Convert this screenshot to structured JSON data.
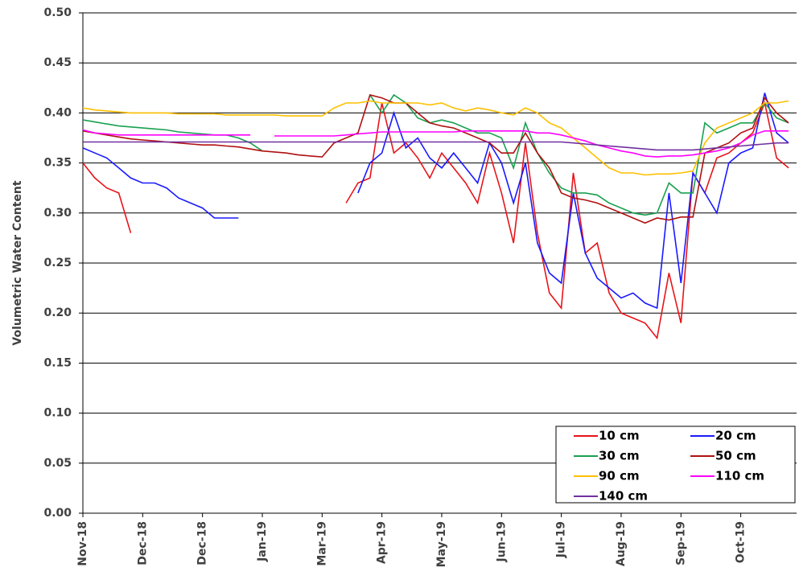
{
  "chart_data": {
    "type": "line",
    "y_label": "Volumetric Water Content",
    "x": [
      0,
      6,
      12,
      18,
      24,
      30,
      36,
      42,
      48,
      54,
      60,
      66,
      72,
      78,
      84,
      90,
      96,
      102,
      108,
      114,
      120,
      126,
      132,
      138,
      144,
      150,
      156,
      162,
      168,
      174,
      180,
      186,
      192,
      198,
      204,
      210,
      216,
      222,
      228,
      234,
      240,
      246,
      252,
      258,
      264,
      270,
      276,
      282,
      288,
      294,
      300,
      306,
      312,
      318,
      324,
      330,
      336,
      342,
      348,
      354
    ],
    "xlim": [
      0,
      358
    ],
    "xticks": [
      {
        "value": 0,
        "label": "Nov-18"
      },
      {
        "value": 30,
        "label": "Dec-18"
      },
      {
        "value": 60,
        "label": "Dec-18"
      },
      {
        "value": 90,
        "label": "Jan-19"
      },
      {
        "value": 120,
        "label": "Mar-19"
      },
      {
        "value": 150,
        "label": "Apr-19"
      },
      {
        "value": 180,
        "label": "May-19"
      },
      {
        "value": 210,
        "label": "Jun-19"
      },
      {
        "value": 240,
        "label": "Jul-19"
      },
      {
        "value": 270,
        "label": "Aug-19"
      },
      {
        "value": 300,
        "label": "Sep-19"
      },
      {
        "value": 330,
        "label": "Oct-19"
      }
    ],
    "ylim": [
      0,
      0.5
    ],
    "yticks": [
      {
        "value": 0,
        "label": "0.00"
      },
      {
        "value": 0.05,
        "label": "0.05"
      },
      {
        "value": 0.1,
        "label": "0.10"
      },
      {
        "value": 0.15,
        "label": "0.15"
      },
      {
        "value": 0.2,
        "label": "0.20"
      },
      {
        "value": 0.25,
        "label": "0.25"
      },
      {
        "value": 0.3,
        "label": "0.30"
      },
      {
        "value": 0.35,
        "label": "0.35"
      },
      {
        "value": 0.4,
        "label": "0.40"
      },
      {
        "value": 0.45,
        "label": "0.45"
      },
      {
        "value": 0.5,
        "label": "0.50"
      }
    ],
    "grid": true,
    "legend": "lower right",
    "series": [
      {
        "name": "10 cm",
        "color": "#e8141a",
        "values": [
          0.35,
          0.335,
          0.325,
          0.32,
          0.28,
          null,
          null,
          null,
          null,
          null,
          null,
          null,
          null,
          null,
          null,
          null,
          null,
          null,
          null,
          null,
          null,
          null,
          0.31,
          0.33,
          0.335,
          0.41,
          0.36,
          0.37,
          0.355,
          0.335,
          0.36,
          0.345,
          0.33,
          0.31,
          0.36,
          0.32,
          0.27,
          0.37,
          0.28,
          0.22,
          0.205,
          0.34,
          0.26,
          0.27,
          0.22,
          0.2,
          0.195,
          0.19,
          0.175,
          0.24,
          0.19,
          0.34,
          0.32,
          0.355,
          0.36,
          0.37,
          0.38,
          0.41,
          0.355,
          0.345
        ]
      },
      {
        "name": "20 cm",
        "color": "#1a1aff",
        "values": [
          0.365,
          0.36,
          0.355,
          0.345,
          0.335,
          0.33,
          0.33,
          0.325,
          0.315,
          0.31,
          0.305,
          0.295,
          0.295,
          0.295,
          null,
          null,
          null,
          null,
          null,
          null,
          null,
          null,
          null,
          0.32,
          0.35,
          0.36,
          0.4,
          0.365,
          0.375,
          0.355,
          0.345,
          0.36,
          0.345,
          0.33,
          0.37,
          0.35,
          0.31,
          0.35,
          0.27,
          0.24,
          0.23,
          0.32,
          0.26,
          0.235,
          0.225,
          0.215,
          0.22,
          0.21,
          0.205,
          0.32,
          0.23,
          0.34,
          0.32,
          0.3,
          0.35,
          0.36,
          0.365,
          0.42,
          0.38,
          0.37
        ]
      },
      {
        "name": "30 cm",
        "color": "#1aa050",
        "values": [
          0.393,
          0.391,
          0.389,
          0.387,
          0.386,
          0.385,
          0.384,
          0.383,
          0.381,
          0.38,
          0.379,
          0.378,
          0.378,
          0.375,
          0.37,
          0.362,
          null,
          null,
          null,
          null,
          null,
          null,
          null,
          null,
          0.418,
          0.4,
          0.418,
          0.41,
          0.395,
          0.39,
          0.393,
          0.39,
          0.385,
          0.38,
          0.38,
          0.375,
          0.345,
          0.39,
          0.36,
          0.34,
          0.325,
          0.32,
          0.32,
          0.318,
          0.31,
          0.305,
          0.3,
          0.298,
          0.3,
          0.33,
          0.32,
          0.32,
          0.39,
          0.38,
          0.385,
          0.39,
          0.39,
          0.41,
          0.395,
          0.39
        ]
      },
      {
        "name": "50 cm",
        "color": "#b01010",
        "values": [
          0.382,
          0.38,
          0.378,
          0.376,
          0.374,
          0.373,
          0.372,
          0.371,
          0.37,
          0.369,
          0.368,
          0.368,
          0.367,
          0.366,
          0.364,
          0.362,
          0.361,
          0.36,
          0.358,
          0.357,
          0.356,
          0.37,
          0.375,
          0.38,
          0.418,
          0.415,
          0.41,
          0.41,
          0.4,
          0.39,
          0.387,
          0.385,
          0.38,
          0.375,
          0.37,
          0.36,
          0.36,
          0.38,
          0.36,
          0.345,
          0.32,
          0.315,
          0.313,
          0.31,
          0.305,
          0.3,
          0.295,
          0.29,
          0.295,
          0.293,
          0.296,
          0.296,
          0.36,
          0.365,
          0.37,
          0.38,
          0.385,
          0.415,
          0.4,
          0.39
        ]
      },
      {
        "name": "90 cm",
        "color": "#ffc000",
        "values": [
          0.405,
          0.403,
          0.402,
          0.401,
          0.4,
          0.4,
          0.4,
          0.4,
          0.399,
          0.399,
          0.399,
          0.399,
          0.398,
          0.398,
          0.398,
          0.398,
          0.398,
          0.397,
          0.397,
          0.397,
          0.397,
          0.405,
          0.41,
          0.41,
          0.412,
          0.41,
          0.41,
          0.41,
          0.41,
          0.408,
          0.41,
          0.405,
          0.402,
          0.405,
          0.403,
          0.4,
          0.398,
          0.405,
          0.4,
          0.39,
          0.385,
          0.375,
          0.365,
          0.355,
          0.345,
          0.34,
          0.34,
          0.338,
          0.339,
          0.339,
          0.34,
          0.342,
          0.37,
          0.385,
          0.39,
          0.395,
          0.4,
          0.41,
          0.41,
          0.412
        ]
      },
      {
        "name": "110 cm",
        "color": "#ff00ff",
        "values": [
          0.383,
          0.38,
          0.379,
          0.378,
          0.378,
          0.378,
          0.378,
          0.378,
          0.378,
          0.378,
          0.378,
          0.378,
          0.378,
          0.378,
          0.378,
          null,
          0.377,
          0.377,
          0.377,
          0.377,
          0.377,
          0.377,
          0.378,
          0.379,
          0.38,
          0.381,
          0.381,
          0.381,
          0.381,
          0.381,
          0.381,
          0.381,
          0.382,
          0.382,
          0.382,
          0.382,
          0.382,
          0.382,
          0.38,
          0.38,
          0.378,
          0.375,
          0.372,
          0.368,
          0.365,
          0.362,
          0.36,
          0.357,
          0.356,
          0.357,
          0.357,
          0.358,
          0.36,
          0.362,
          0.365,
          0.37,
          0.378,
          0.382,
          0.382,
          0.382
        ]
      },
      {
        "name": "140 cm",
        "color": "#7030a0",
        "values": [
          0.371,
          0.371,
          0.371,
          0.371,
          0.371,
          0.371,
          0.371,
          0.371,
          0.371,
          0.371,
          0.371,
          0.371,
          0.371,
          0.371,
          0.371,
          0.371,
          0.371,
          0.371,
          0.371,
          0.371,
          0.371,
          0.371,
          0.371,
          0.371,
          0.371,
          0.371,
          0.371,
          0.371,
          0.371,
          0.371,
          0.371,
          0.371,
          0.371,
          0.371,
          0.371,
          0.371,
          0.371,
          0.371,
          0.371,
          0.371,
          0.371,
          0.37,
          0.369,
          0.368,
          0.367,
          0.366,
          0.365,
          0.364,
          0.363,
          0.363,
          0.363,
          0.363,
          0.364,
          0.365,
          0.366,
          0.367,
          0.368,
          0.369,
          0.37,
          0.37
        ]
      }
    ]
  }
}
